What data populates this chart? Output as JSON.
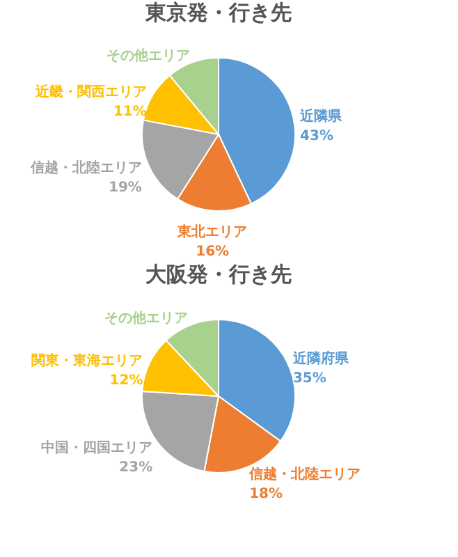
{
  "chart_data": [
    {
      "type": "pie",
      "title": "東京発・行き先",
      "categories": [
        "近隣県",
        "東北エリア",
        "信越・北陸エリア",
        "近畿・関西エリア",
        "その他エリア"
      ],
      "values": [
        43,
        16,
        19,
        11,
        11
      ],
      "colors": [
        "#5b9bd5",
        "#ed7d31",
        "#a5a5a5",
        "#ffc000",
        "#a9d18e"
      ],
      "value_labels": [
        "43%",
        "16%",
        "19%",
        "11%",
        null
      ],
      "legend": false
    },
    {
      "type": "pie",
      "title": "大阪発・行き先",
      "categories": [
        "近隣府県",
        "信越・北陸エリア",
        "中国・四国エリア",
        "関東・東海エリア",
        "その他エリア"
      ],
      "values": [
        35,
        18,
        23,
        12,
        12
      ],
      "colors": [
        "#5b9bd5",
        "#ed7d31",
        "#a5a5a5",
        "#ffc000",
        "#a9d18e"
      ],
      "value_labels": [
        "35%",
        "18%",
        "23%",
        "12%",
        null
      ],
      "legend": false
    }
  ]
}
